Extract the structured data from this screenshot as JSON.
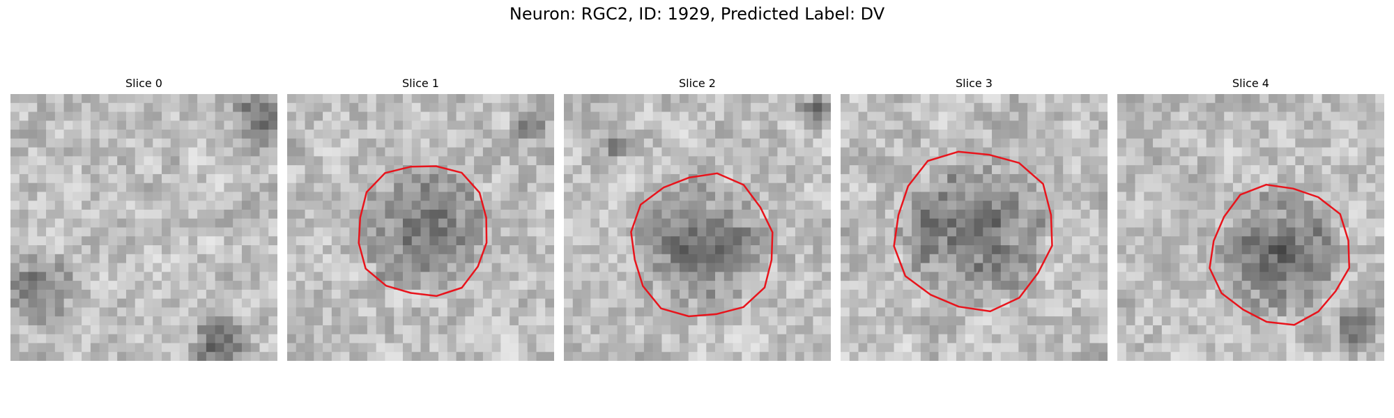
{
  "figure": {
    "title": "Neuron: RGC2, ID: 1929, Predicted Label: DV"
  },
  "slices": [
    {
      "label": "Slice 0",
      "has_contour": false,
      "seed": 11,
      "dark_spots": [
        [
          0.94,
          0.1,
          0.12
        ],
        [
          0.1,
          0.72,
          0.14
        ],
        [
          0.78,
          0.95,
          0.12
        ]
      ]
    },
    {
      "label": "Slice 1",
      "has_contour": true,
      "seed": 23,
      "center": [
        0.51,
        0.51
      ],
      "radius": 0.25,
      "contour_color": "#e8141c",
      "dark_spots": [
        [
          0.9,
          0.12,
          0.06
        ]
      ]
    },
    {
      "label": "Slice 2",
      "has_contour": true,
      "seed": 37,
      "center": [
        0.52,
        0.57
      ],
      "radius": 0.27,
      "contour_color": "#e8141c",
      "dark_spots": [
        [
          0.95,
          0.06,
          0.07
        ],
        [
          0.2,
          0.2,
          0.05
        ]
      ]
    },
    {
      "label": "Slice 3",
      "has_contour": true,
      "seed": 41,
      "center": [
        0.5,
        0.51
      ],
      "radius": 0.3,
      "contour_color": "#e8141c",
      "dark_spots": []
    },
    {
      "label": "Slice 4",
      "has_contour": true,
      "seed": 53,
      "center": [
        0.61,
        0.6
      ],
      "radius": 0.26,
      "contour_color": "#e8141c",
      "dark_spots": [
        [
          0.9,
          0.88,
          0.09
        ]
      ]
    }
  ],
  "colormap": "gray",
  "contour_color": "#e8141c"
}
